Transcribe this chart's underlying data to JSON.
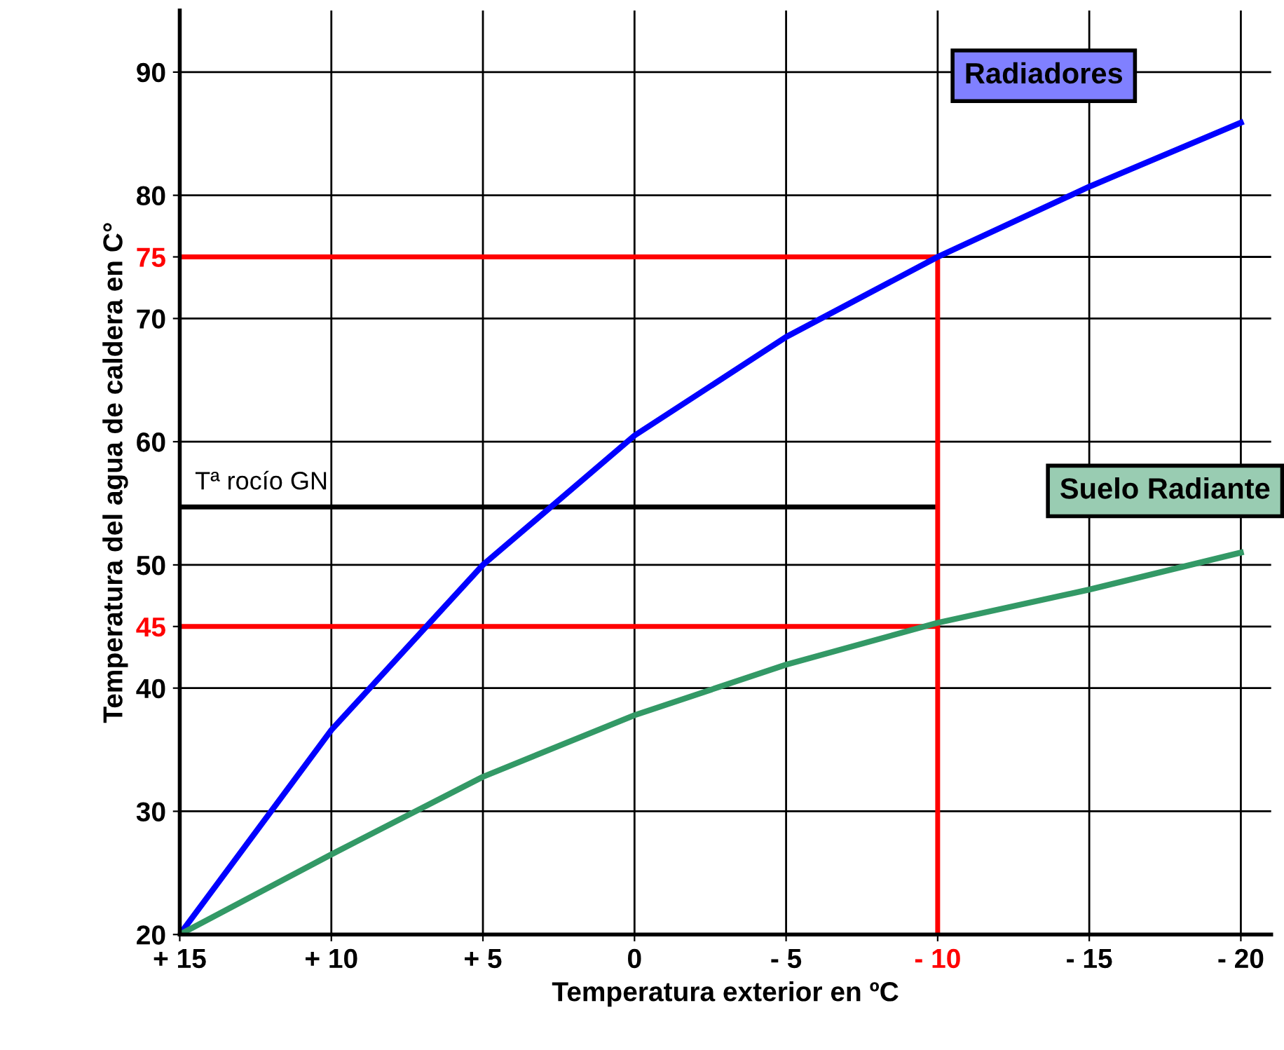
{
  "chart_data": {
    "type": "line",
    "xlabel": "Temperatura exterior en ºC",
    "ylabel": "Temperatura del agua de caldera en C°",
    "xlim": [
      15,
      -21
    ],
    "ylim": [
      20,
      95
    ],
    "xticks": [
      {
        "value": 15,
        "label": "+ 15"
      },
      {
        "value": 10,
        "label": "+ 10"
      },
      {
        "value": 5,
        "label": "+ 5"
      },
      0,
      {
        "value": -5,
        "label": "- 5"
      },
      {
        "value": -10,
        "label": "- 10"
      },
      {
        "value": -15,
        "label": "- 15"
      },
      {
        "value": -20,
        "label": "- 20"
      }
    ],
    "yticks": [
      20,
      30,
      40,
      45,
      50,
      60,
      70,
      75,
      80,
      90
    ],
    "grid": true,
    "legend": false,
    "marker": "none",
    "line_style": "solid",
    "x": [
      15,
      10,
      5,
      0,
      -5,
      -10,
      -15,
      -20
    ],
    "series": [
      {
        "name": "Radiadores",
        "color": "#0000ff",
        "values": [
          20,
          36.6,
          50,
          60.5,
          68.5,
          75,
          80.7,
          85.9
        ]
      },
      {
        "name": "Suelo Radiante",
        "color": "#339966",
        "values": [
          20,
          26.5,
          32.8,
          37.8,
          41.9,
          45.3,
          48,
          51
        ]
      }
    ],
    "ref_lines": [
      {
        "axis": "y",
        "value": 75,
        "color": "#ff0000"
      },
      {
        "axis": "y",
        "value": 45,
        "color": "#ff0000"
      },
      {
        "axis": "y",
        "value": 54.7,
        "color": "#000000",
        "label": "Tª rocío GN"
      },
      {
        "axis": "x",
        "value": -10,
        "color": "#ff0000"
      }
    ]
  }
}
